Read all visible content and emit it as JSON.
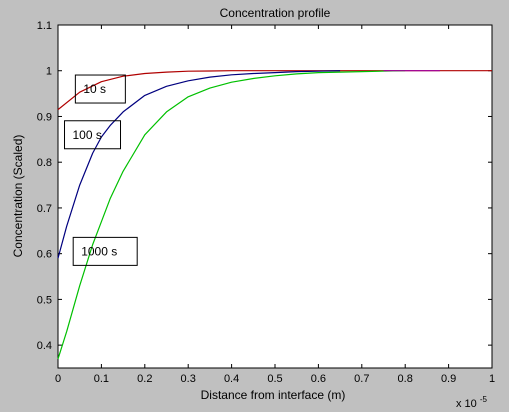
{
  "chart_data": {
    "type": "line",
    "title": "Concentration profile",
    "xlabel": "Distance from interface (m)",
    "ylabel": "Concentration (Scaled)",
    "x_exponent_label": "x 10",
    "x_exponent_power": "-5",
    "xlim": [
      0,
      1
    ],
    "ylim": [
      0.35,
      1.1
    ],
    "x_ticks": [
      0,
      0.1,
      0.2,
      0.3,
      0.4,
      0.5,
      0.6,
      0.7,
      0.8,
      0.9,
      1
    ],
    "x_tick_labels": [
      "0",
      "0.1",
      "0.2",
      "0.3",
      "0.4",
      "0.5",
      "0.6",
      "0.7",
      "0.8",
      "0.9",
      "1"
    ],
    "y_ticks": [
      0.4,
      0.5,
      0.6,
      0.7,
      0.8,
      0.9,
      1,
      1.1
    ],
    "y_tick_labels": [
      "0.4",
      "0.5",
      "0.6",
      "0.7",
      "0.8",
      "0.9",
      "1",
      "1.1"
    ],
    "grid": false,
    "series": [
      {
        "color": "#b00000",
        "x": [
          0,
          0.05,
          0.1,
          0.15,
          0.2,
          0.25,
          0.3,
          0.35,
          0.4,
          0.5,
          0.6,
          0.7,
          0.8,
          0.9,
          1.0
        ],
        "y": [
          0.915,
          0.953,
          0.976,
          0.988,
          0.994,
          0.997,
          0.999,
          0.9995,
          1.0,
          1.0,
          1.0,
          1.0,
          1.0,
          1.0,
          1.0
        ]
      },
      {
        "color": "#00007f",
        "x": [
          0,
          0.02,
          0.05,
          0.08,
          0.1,
          0.12,
          0.15,
          0.2,
          0.25,
          0.3,
          0.35,
          0.4,
          0.45,
          0.5,
          0.55,
          0.6,
          0.65
        ],
        "y": [
          0.59,
          0.66,
          0.75,
          0.82,
          0.855,
          0.88,
          0.91,
          0.946,
          0.966,
          0.978,
          0.986,
          0.991,
          0.994,
          0.996,
          0.998,
          0.999,
          1.0
        ]
      },
      {
        "color": "#00c000",
        "x": [
          0,
          0.02,
          0.05,
          0.08,
          0.1,
          0.12,
          0.15,
          0.2,
          0.25,
          0.3,
          0.35,
          0.4,
          0.45,
          0.5,
          0.55,
          0.6,
          0.7,
          0.8
        ],
        "y": [
          0.37,
          0.43,
          0.53,
          0.62,
          0.67,
          0.72,
          0.78,
          0.86,
          0.91,
          0.943,
          0.962,
          0.975,
          0.983,
          0.989,
          0.993,
          0.996,
          0.998,
          1.0
        ]
      },
      {
        "color": "#a000a0",
        "x": [
          0.75,
          0.8,
          0.85,
          0.88
        ],
        "y": [
          1.0,
          1.0,
          1.0,
          1.0
        ]
      }
    ],
    "annotations": [
      {
        "text": "10 s",
        "x": 0.04,
        "y": 0.96
      },
      {
        "text": "100 s",
        "x": 0.015,
        "y": 0.86
      },
      {
        "text": "1000 s",
        "x": 0.035,
        "y": 0.605
      }
    ]
  }
}
